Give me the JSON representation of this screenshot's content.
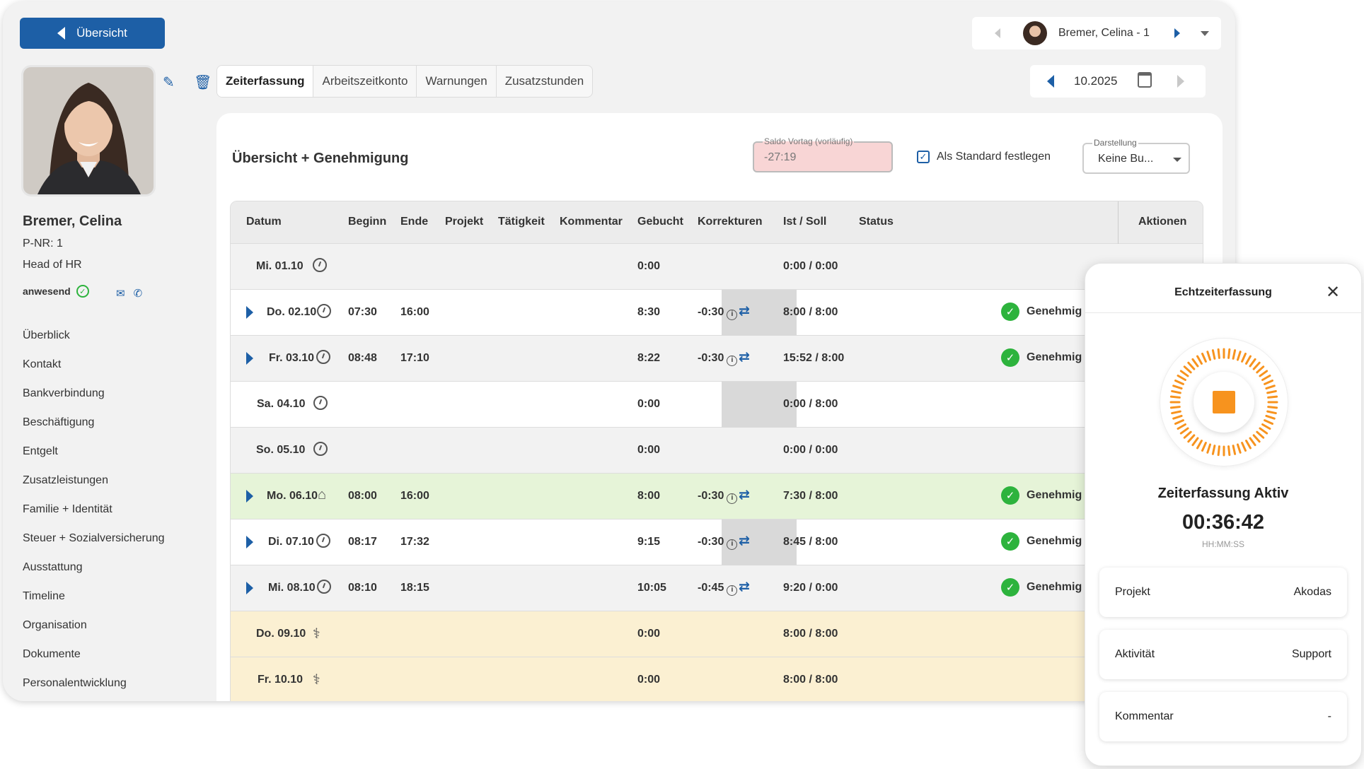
{
  "header": {
    "back_label": "Übersicht",
    "employee_switch": "Bremer, Celina - 1",
    "month": "10.2025"
  },
  "profile": {
    "name": "Bremer, Celina",
    "pnr": "P-NR: 1",
    "role": "Head of HR",
    "presence": "anwesend"
  },
  "tabs": [
    {
      "label": "Zeiterfassung"
    },
    {
      "label": "Arbeitszeitkonto"
    },
    {
      "label": "Warnungen"
    },
    {
      "label": "Zusatzstunden"
    }
  ],
  "sidebar": {
    "items": [
      {
        "label": "Überblick"
      },
      {
        "label": "Kontakt"
      },
      {
        "label": "Bankverbindung"
      },
      {
        "label": "Beschäftigung"
      },
      {
        "label": "Entgelt"
      },
      {
        "label": "Zusatzleistungen"
      },
      {
        "label": "Familie + Identität"
      },
      {
        "label": "Steuer + Sozialversicherung"
      },
      {
        "label": "Ausstattung"
      },
      {
        "label": "Timeline"
      },
      {
        "label": "Organisation"
      },
      {
        "label": "Dokumente"
      },
      {
        "label": "Personalentwicklung"
      }
    ]
  },
  "main": {
    "title": "Übersicht + Genehmigung",
    "saldo_label": "Saldo Vortag (vorläufig)",
    "saldo_value": "-27:19",
    "standard_label": "Als Standard festlegen",
    "darstellung_label": "Darstellung",
    "darstellung_value": "Keine Bu..."
  },
  "table": {
    "columns": [
      "Datum",
      "Beginn",
      "Ende",
      "Projekt",
      "Tätigkeit",
      "Kommentar",
      "Gebucht",
      "Korrekturen",
      "Ist / Soll",
      "Status",
      "Aktionen"
    ],
    "rows": [
      {
        "date": "Mi. 01.10",
        "begin": "",
        "end": "",
        "booked": "0:00",
        "corr": "",
        "ist": "0:00 / 0:00",
        "status": ""
      },
      {
        "date": "Do. 02.10",
        "begin": "07:30",
        "end": "16:00",
        "booked": "8:30",
        "corr": "-0:30",
        "ist": "8:00 / 8:00",
        "status": "Genehmig"
      },
      {
        "date": "Fr. 03.10",
        "begin": "08:48",
        "end": "17:10",
        "booked": "8:22",
        "corr": "-0:30",
        "ist": "15:52 / 8:00",
        "status": "Genehmig"
      },
      {
        "date": "Sa. 04.10",
        "begin": "",
        "end": "",
        "booked": "0:00",
        "corr": "",
        "ist": "0:00 / 8:00",
        "status": ""
      },
      {
        "date": "So. 05.10",
        "begin": "",
        "end": "",
        "booked": "0:00",
        "corr": "",
        "ist": "0:00 / 0:00",
        "status": ""
      },
      {
        "date": "Mo. 06.10",
        "begin": "08:00",
        "end": "16:00",
        "booked": "8:00",
        "corr": "-0:30",
        "ist": "7:30 / 8:00",
        "status": "Genehmig"
      },
      {
        "date": "Di. 07.10",
        "begin": "08:17",
        "end": "17:32",
        "booked": "9:15",
        "corr": "-0:30",
        "ist": "8:45 / 8:00",
        "status": "Genehmig"
      },
      {
        "date": "Mi. 08.10",
        "begin": "08:10",
        "end": "18:15",
        "booked": "10:05",
        "corr": "-0:45",
        "ist": "9:20 / 0:00",
        "status": "Genehmig"
      },
      {
        "date": "Do. 09.10",
        "begin": "",
        "end": "",
        "booked": "0:00",
        "corr": "",
        "ist": "8:00 / 8:00",
        "status": ""
      },
      {
        "date": "Fr. 10.10",
        "begin": "",
        "end": "",
        "booked": "0:00",
        "corr": "",
        "ist": "8:00 / 8:00",
        "status": ""
      }
    ]
  },
  "popup": {
    "title": "Echtzeiterfassung",
    "status": "Zeiterfassung Aktiv",
    "time": "00:36:42",
    "format": "HH:MM:SS",
    "fields": [
      {
        "key": "Projekt",
        "value": "Akodas"
      },
      {
        "key": "Aktivität",
        "value": "Support"
      },
      {
        "key": "Kommentar",
        "value": "-"
      }
    ]
  },
  "colors": {
    "primary": "#1d5fa6",
    "approved": "#2db33d",
    "timer": "#f7931e",
    "row_green": "#e6f4d8",
    "row_yellow": "#fbf0d2",
    "saldo_negative": "#f8d5d5"
  }
}
